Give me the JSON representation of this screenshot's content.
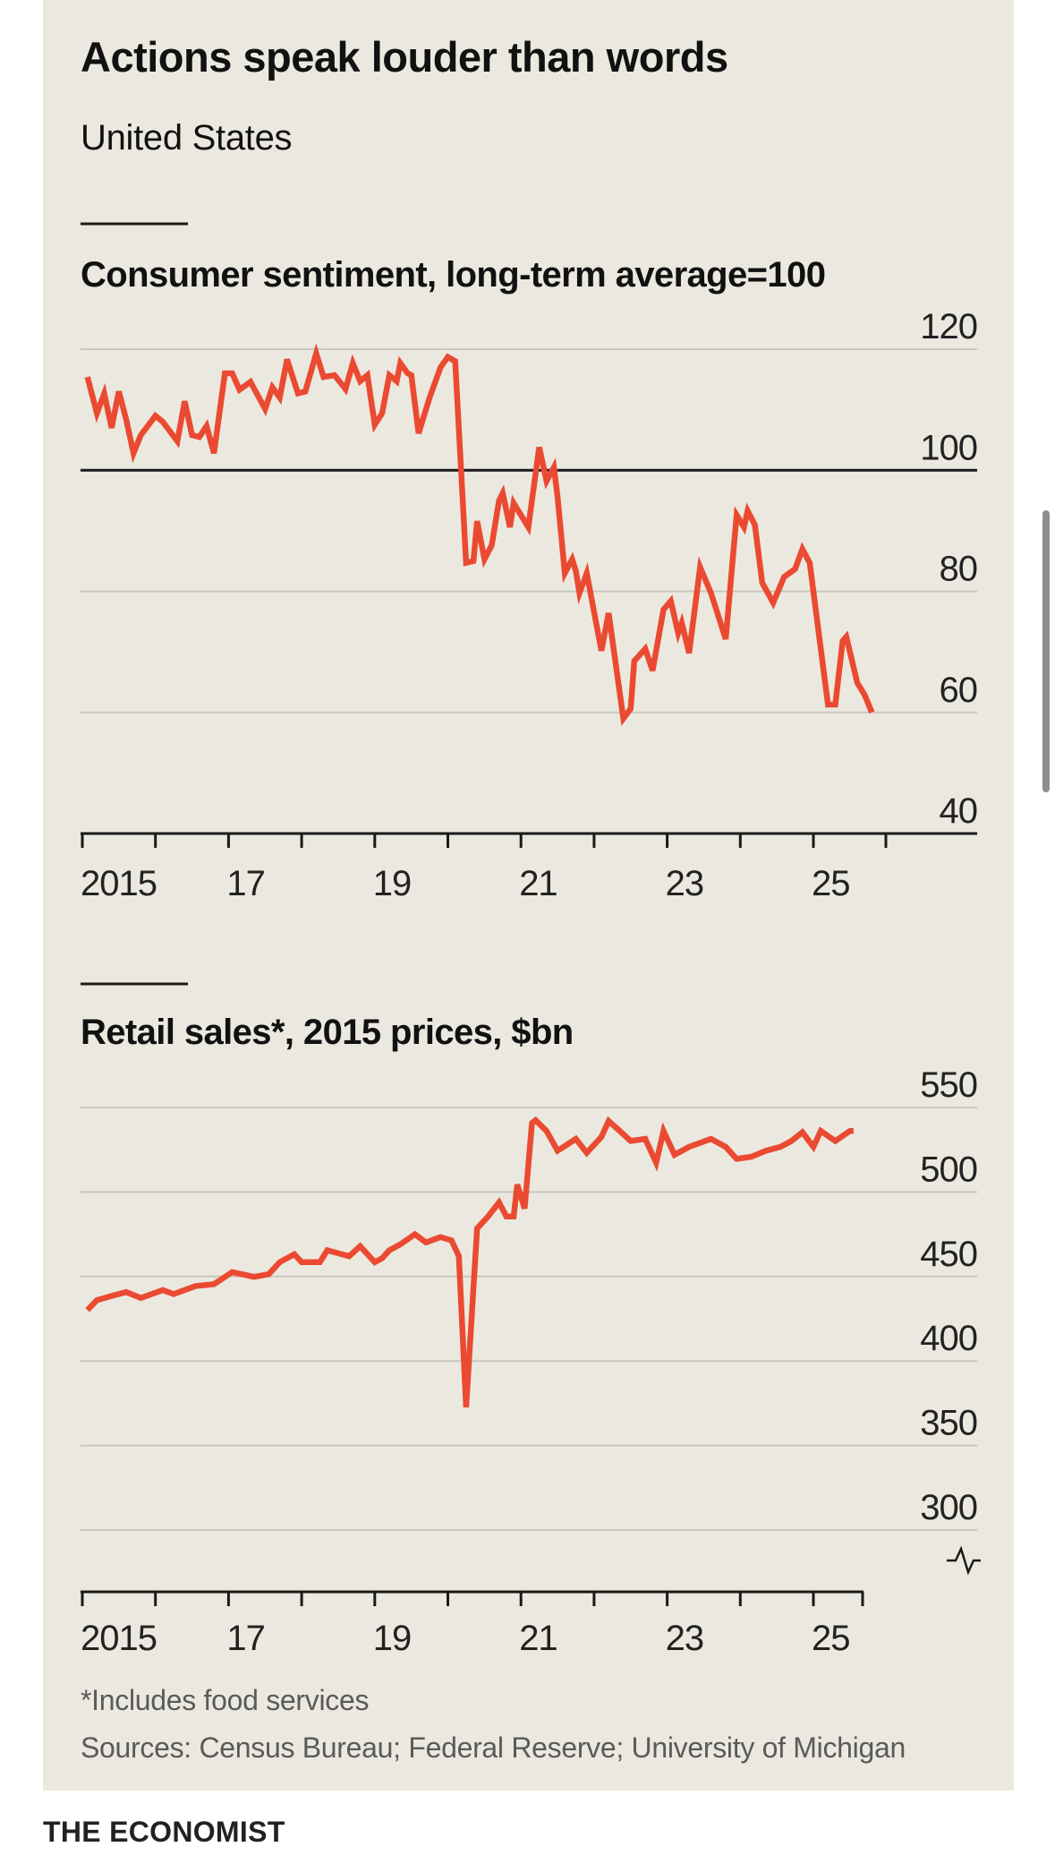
{
  "title": "Actions speak louder than words",
  "subtitle": "United States",
  "footnote": "*Includes food services",
  "sources": "Sources: Census Bureau; Federal Reserve; University of Michigan",
  "brand": "THE ECONOMIST",
  "colors": {
    "line": "#eb4a32",
    "background": "#ebe9df",
    "grid": "#c9c7bd",
    "axis": "#1a1a1a"
  },
  "chart_data": [
    {
      "type": "line",
      "title": "Consumer sentiment, long-term average=100",
      "ylim": [
        40,
        120
      ],
      "yticks": [
        "120",
        "100",
        "80",
        "60",
        "40"
      ],
      "ytick_values": [
        120,
        100,
        80,
        60,
        40
      ],
      "baseline": 100,
      "xlim": [
        2015,
        2025.9
      ],
      "xtick_labels": [
        "2015",
        "17",
        "19",
        "21",
        "23",
        "25"
      ],
      "xtick_label_years": [
        2015,
        2017,
        2019,
        2021,
        2023,
        2025
      ],
      "grid": true,
      "series": [
        {
          "name": "Consumer sentiment",
          "x": [
            2015.07,
            2015.2,
            2015.3,
            2015.4,
            2015.5,
            2015.6,
            2015.7,
            2015.8,
            2016.0,
            2016.1,
            2016.3,
            2016.4,
            2016.5,
            2016.6,
            2016.7,
            2016.8,
            2016.95,
            2017.05,
            2017.15,
            2017.3,
            2017.5,
            2017.6,
            2017.7,
            2017.8,
            2017.95,
            2018.05,
            2018.2,
            2018.3,
            2018.45,
            2018.6,
            2018.7,
            2018.8,
            2018.9,
            2019.0,
            2019.1,
            2019.2,
            2019.3,
            2019.35,
            2019.45,
            2019.5,
            2019.6,
            2019.75,
            2019.9,
            2020.0,
            2020.1,
            2020.25,
            2020.35,
            2020.4,
            2020.5,
            2020.6,
            2020.7,
            2020.75,
            2020.85,
            2020.9,
            2021.1,
            2021.25,
            2021.35,
            2021.45,
            2021.5,
            2021.6,
            2021.7,
            2021.75,
            2021.8,
            2021.9,
            2022.1,
            2022.2,
            2022.4,
            2022.5,
            2022.55,
            2022.7,
            2022.8,
            2022.95,
            2023.05,
            2023.15,
            2023.2,
            2023.3,
            2023.45,
            2023.6,
            2023.8,
            2023.95,
            2024.05,
            2024.1,
            2024.2,
            2024.3,
            2024.45,
            2024.6,
            2024.75,
            2024.85,
            2024.95,
            2025.2,
            2025.3,
            2025.4,
            2025.45,
            2025.6,
            2025.7,
            2025.8
          ],
          "y": [
            115.4,
            109.4,
            112.7,
            107,
            113,
            108.4,
            102.8,
            105.8,
            109,
            108,
            104.8,
            111.4,
            105.8,
            105.5,
            107.3,
            102.8,
            116,
            116,
            113.3,
            114.6,
            110.1,
            113.7,
            112,
            118.3,
            112.7,
            113,
            119.3,
            115.4,
            115.7,
            113.4,
            117.7,
            114.7,
            115.7,
            107.5,
            109.4,
            115.7,
            114.7,
            117.7,
            116,
            115.7,
            106.1,
            112,
            117,
            118.7,
            118,
            84.7,
            85,
            91.6,
            85.3,
            87.6,
            95,
            96.2,
            90.6,
            94.6,
            90.6,
            103.8,
            98.2,
            100.5,
            95.6,
            83,
            85.3,
            83.4,
            79.7,
            83,
            70.2,
            76.4,
            59,
            60.6,
            68.5,
            70.5,
            66.9,
            77,
            78.4,
            73.1,
            74.8,
            69.8,
            84,
            79.7,
            72.1,
            92.6,
            90.6,
            93.3,
            91,
            81.4,
            78.1,
            82.4,
            83.7,
            87,
            84.7,
            61.3,
            61.3,
            71.8,
            72.5,
            64.9,
            62.9,
            60
          ]
        }
      ]
    },
    {
      "type": "line",
      "title": "Retail sales*, 2015 prices, $bn",
      "ylim": [
        300,
        550
      ],
      "yticks": [
        "550",
        "500",
        "450",
        "400",
        "350",
        "300"
      ],
      "ytick_values": [
        550,
        500,
        450,
        400,
        350,
        300
      ],
      "axis_break": true,
      "xlim": [
        2015,
        2025.7
      ],
      "xtick_labels": [
        "2015",
        "17",
        "19",
        "21",
        "23",
        "25"
      ],
      "xtick_label_years": [
        2015,
        2017,
        2019,
        2021,
        2023,
        2025
      ],
      "grid": true,
      "series": [
        {
          "name": "Retail sales",
          "x": [
            2015.07,
            2015.2,
            2015.4,
            2015.6,
            2015.8,
            2016.1,
            2016.25,
            2016.55,
            2016.8,
            2017.05,
            2017.35,
            2017.55,
            2017.7,
            2017.9,
            2018.0,
            2018.25,
            2018.35,
            2018.65,
            2018.8,
            2019.0,
            2019.1,
            2019.2,
            2019.35,
            2019.55,
            2019.7,
            2019.9,
            2020.05,
            2020.15,
            2020.25,
            2020.4,
            2020.55,
            2020.7,
            2020.8,
            2020.9,
            2020.95,
            2021.05,
            2021.15,
            2021.2,
            2021.35,
            2021.5,
            2021.75,
            2021.9,
            2022.1,
            2022.2,
            2022.35,
            2022.5,
            2022.7,
            2022.85,
            2022.95,
            2023.1,
            2023.3,
            2023.6,
            2023.8,
            2023.95,
            2024.15,
            2024.35,
            2024.55,
            2024.7,
            2024.85,
            2025.0,
            2025.1,
            2025.3,
            2025.5,
            2025.55
          ],
          "y": [
            430.2,
            436,
            438.5,
            440.8,
            437.3,
            442,
            439.6,
            444.4,
            445.5,
            452.6,
            449.8,
            451.4,
            458.5,
            463.2,
            458.5,
            458.5,
            465.5,
            462,
            467.9,
            458.5,
            460.8,
            465.5,
            469,
            475,
            470.2,
            473.3,
            471.4,
            462,
            372.6,
            478.5,
            485.5,
            493.8,
            485.5,
            485.5,
            504.4,
            490.2,
            540.8,
            542.5,
            536.1,
            524.4,
            531.4,
            523.2,
            532.6,
            542,
            536.1,
            530.2,
            531.4,
            517.3,
            536.1,
            522,
            526.7,
            531.4,
            526.7,
            519.6,
            520.8,
            524.4,
            526.7,
            530.2,
            535.4,
            526.7,
            536.1,
            530.2,
            536.1,
            536.1
          ]
        }
      ]
    }
  ]
}
